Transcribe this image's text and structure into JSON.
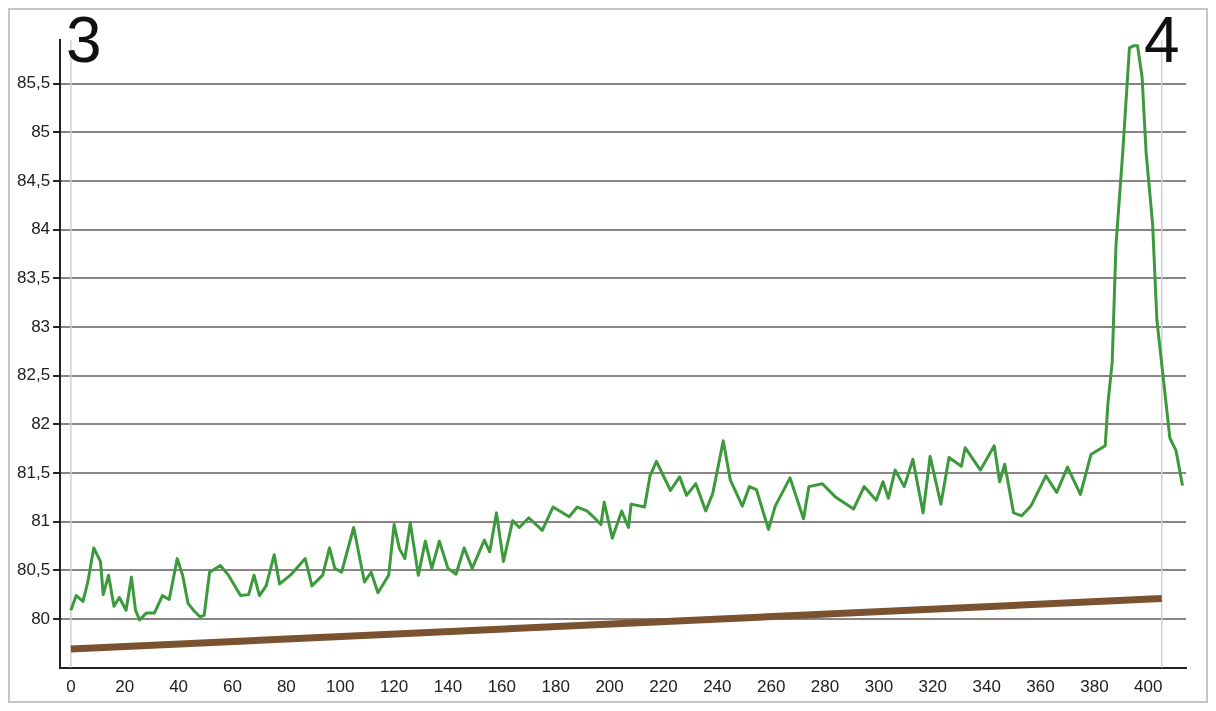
{
  "chart_data": {
    "type": "line",
    "xlim": [
      -4,
      414
    ],
    "ylim": [
      79.5,
      85.95
    ],
    "xticks": [
      0,
      20,
      40,
      60,
      80,
      100,
      120,
      140,
      160,
      180,
      200,
      220,
      240,
      260,
      280,
      300,
      320,
      340,
      360,
      380,
      400
    ],
    "yticks": [
      80,
      {
        "value": 80.5,
        "label": "80,5"
      },
      81,
      {
        "value": 81.5,
        "label": "81,5"
      },
      82,
      {
        "value": 82.5,
        "label": "82,5"
      },
      83,
      {
        "value": 83.5,
        "label": "83,5"
      },
      84,
      {
        "value": 84.5,
        "label": "84,5"
      },
      85,
      {
        "value": 85.5,
        "label": "85,5"
      }
    ],
    "grid": "y",
    "legend": false,
    "marker": "none",
    "line_style": "solid",
    "series": [
      {
        "color": "#3c9a3c",
        "x": [
          0,
          2,
          4.5,
          6.3,
          8.5,
          11,
          12,
          14,
          16,
          18,
          20.5,
          22.5,
          24,
          25.5,
          28,
          31,
          34,
          36.5,
          39.5,
          41.5,
          43.5,
          45.5,
          48,
          49.5,
          51.5,
          55.5,
          58.5,
          63,
          66,
          68,
          70,
          72.5,
          75.5,
          77.5,
          81.5,
          87,
          89.5,
          93.5,
          96,
          98,
          100.5,
          105,
          109,
          111.5,
          114,
          118,
          120,
          122,
          124,
          126,
          129,
          131.6,
          134,
          136.8,
          140,
          143,
          146,
          149,
          153.5,
          155.5,
          158,
          160.6,
          164,
          166.5,
          170,
          175,
          179,
          185,
          188,
          191.6,
          194,
          196.8,
          198,
          201,
          204.5,
          207,
          208,
          213,
          215,
          217.4,
          222.6,
          226,
          228.6,
          232,
          235.7,
          238.3,
          242.2,
          244.8,
          249.3,
          251.9,
          254.5,
          259,
          261.5,
          267,
          272,
          274,
          279,
          284,
          290.6,
          294.5,
          299,
          301.5,
          303.5,
          306,
          309.4,
          312.6,
          316.4,
          319,
          323,
          326,
          330.6,
          332,
          337.7,
          342.8,
          344.8,
          346.7,
          350,
          353,
          356.4,
          362,
          366,
          370,
          374.8,
          378.7,
          384,
          385,
          386.6,
          388,
          390.5,
          393,
          394.5,
          396,
          397.7,
          399.2,
          401.6,
          403.2,
          406.3,
          408,
          410.3,
          412.7
        ],
        "values": [
          80.09,
          80.24,
          80.18,
          80.38,
          80.73,
          80.59,
          80.25,
          80.45,
          80.13,
          80.22,
          80.09,
          80.43,
          80.09,
          79.99,
          80.06,
          80.06,
          80.24,
          80.2,
          80.62,
          80.45,
          80.16,
          80.09,
          80.02,
          80.04,
          80.48,
          80.55,
          80.45,
          80.24,
          80.25,
          80.45,
          80.24,
          80.34,
          80.66,
          80.36,
          80.45,
          80.62,
          80.34,
          80.45,
          80.73,
          80.52,
          80.48,
          80.94,
          80.38,
          80.48,
          80.27,
          80.45,
          80.97,
          80.72,
          80.62,
          80.99,
          80.45,
          80.8,
          80.52,
          80.8,
          80.52,
          80.46,
          80.73,
          80.52,
          80.81,
          80.69,
          81.09,
          80.59,
          81.01,
          80.94,
          81.04,
          80.91,
          81.15,
          81.05,
          81.15,
          81.11,
          81.05,
          80.97,
          81.2,
          80.83,
          81.11,
          80.94,
          81.18,
          81.15,
          81.47,
          81.62,
          81.32,
          81.46,
          81.27,
          81.39,
          81.11,
          81.29,
          81.83,
          81.43,
          81.16,
          81.36,
          81.33,
          80.92,
          81.16,
          81.45,
          81.03,
          81.36,
          81.39,
          81.25,
          81.13,
          81.36,
          81.22,
          81.41,
          81.24,
          81.53,
          81.36,
          81.64,
          81.09,
          81.67,
          81.18,
          81.66,
          81.57,
          81.76,
          81.53,
          81.78,
          81.41,
          81.59,
          81.09,
          81.06,
          81.16,
          81.47,
          81.3,
          81.56,
          81.28,
          81.69,
          81.78,
          82.21,
          82.64,
          83.84,
          84.79,
          85.87,
          85.89,
          85.89,
          85.57,
          84.79,
          84.06,
          83.07,
          82.29,
          81.86,
          81.73,
          81.37
        ]
      },
      {
        "color": "#7b5230",
        "x": [
          0,
          405
        ],
        "values": [
          79.69,
          80.21
        ]
      }
    ],
    "ref_lines": [
      {
        "axis": "x",
        "value": 0,
        "color": "#d0d0d0"
      },
      {
        "axis": "x",
        "value": 405,
        "color": "#d0d0d0"
      }
    ],
    "annotations": [
      "3",
      "4"
    ]
  }
}
